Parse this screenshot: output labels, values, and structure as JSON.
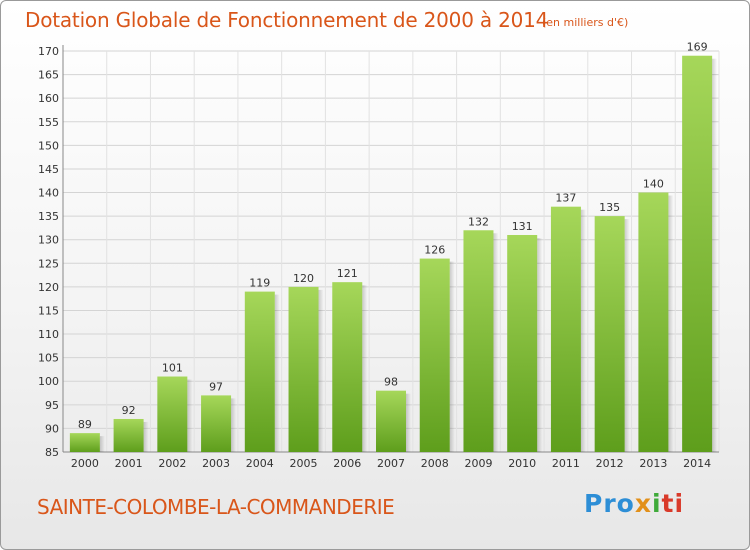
{
  "chart_data": {
    "type": "bar",
    "title": "Dotation Globale de Fonctionnement de 2000 à 2014",
    "subtitle": "(en milliers d'€)",
    "categories": [
      "2000",
      "2001",
      "2002",
      "2003",
      "2004",
      "2005",
      "2006",
      "2007",
      "2008",
      "2009",
      "2010",
      "2011",
      "2012",
      "2013",
      "2014"
    ],
    "values": [
      89,
      92,
      101,
      97,
      119,
      120,
      121,
      98,
      126,
      132,
      131,
      137,
      135,
      140,
      169
    ],
    "ylim": [
      85,
      170
    ],
    "yticks": [
      85,
      90,
      95,
      100,
      105,
      110,
      115,
      120,
      125,
      130,
      135,
      140,
      145,
      150,
      155,
      160,
      165,
      170
    ],
    "grid": true,
    "bar_color": "#7fbf2f",
    "xlabel": "",
    "ylabel": ""
  },
  "footer": {
    "commune": "SAINTE-COLOMBE-LA-COMMANDERIE",
    "logo": {
      "part1": "Pro",
      "part2": "x",
      "part3": "i",
      "part4": "ti"
    }
  },
  "colors": {
    "title": "#d9561a",
    "bar_light": "#a6d75a",
    "bar_dark": "#5e9e1c"
  }
}
